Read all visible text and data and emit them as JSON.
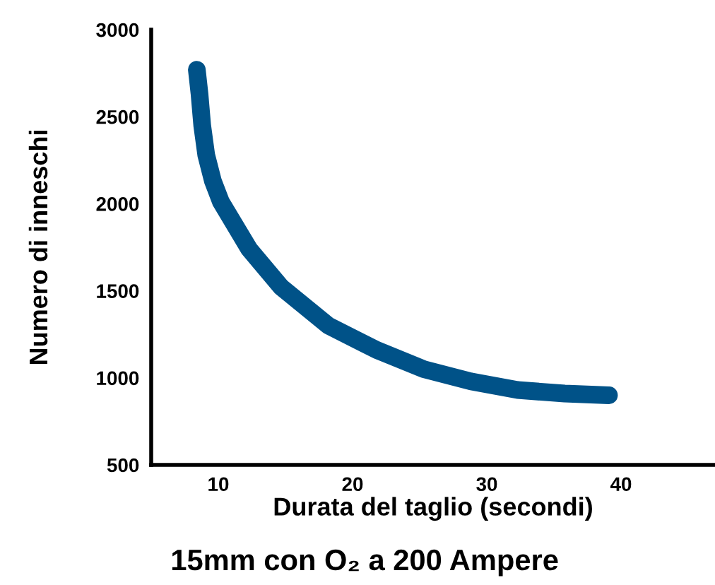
{
  "chart_data": {
    "type": "line",
    "title": "15mm con O₂ a 200 Ampere",
    "xlabel": "Durata del taglio (secondi)",
    "ylabel": "Numero di inneschi",
    "x": [
      8.4,
      8.6,
      8.8,
      9.1,
      9.6,
      10.2,
      12.3,
      14.7,
      18.2,
      21.8,
      25.3,
      28.8,
      32.3,
      35.8,
      39.1
    ],
    "series": [
      {
        "color": "#005288",
        "values": [
          2770,
          2630,
          2450,
          2280,
          2130,
          2010,
          1740,
          1520,
          1300,
          1160,
          1050,
          980,
          930,
          910,
          900
        ]
      }
    ],
    "xlim": [
      5,
      47
    ],
    "ylim": [
      500,
      3000
    ],
    "xticks": [
      10,
      20,
      30,
      40
    ],
    "yticks": [
      500,
      1000,
      1500,
      2000,
      2500,
      3000
    ],
    "grid": false,
    "line_style": "solid"
  }
}
